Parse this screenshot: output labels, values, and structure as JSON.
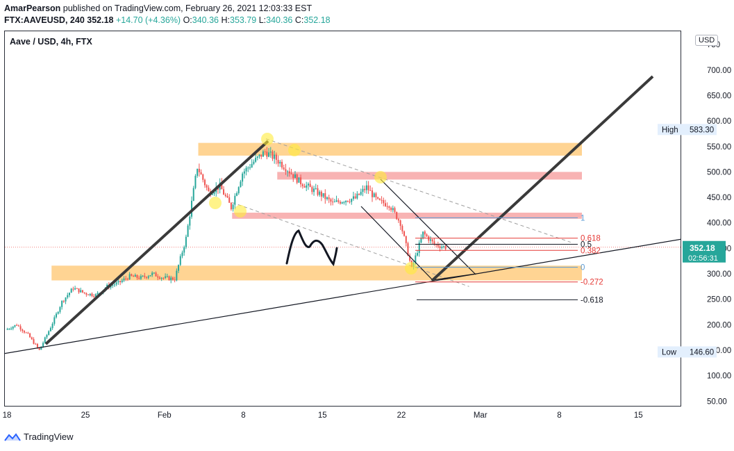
{
  "header": {
    "author": "AmarPearson",
    "published_text": "published on TradingView.com, February 26, 2021 12:03:33 EST",
    "ticker": "FTX:AAVEUSD, 240",
    "price": "352.18",
    "change": "+14.70 (+4.36%)",
    "open_label": "O:",
    "open": "340.36",
    "high_label": "H:",
    "high": "353.79",
    "low_label": "L:",
    "low": "340.36",
    "close_label": "C:",
    "close": "352.18"
  },
  "symbol_title": "Aave / USD, 4h, FTX",
  "currency_button": "USD",
  "footer_brand": "TradingView",
  "colors": {
    "up": "#26a69a",
    "down": "#ef5350",
    "orange_zone": "#ffcc80",
    "red_zone": "#f7a6a6",
    "fib_blue": "#5b9bd5",
    "fib_red": "#e53935"
  },
  "chart_data": {
    "type": "candlestick",
    "title": "Aave / USD, 4h, FTX",
    "y_axis_ticks": [
      "700.00",
      "650.00",
      "600.00",
      "550.00",
      "500.00",
      "450.00",
      "400.00",
      "350.00",
      "300.00",
      "250.00",
      "200.00",
      "150.00",
      "100.00",
      "50.00"
    ],
    "y_top_cut_label": "750",
    "ylim": [
      38,
      760
    ],
    "x_axis_ticks": [
      "18",
      "25",
      "Feb",
      "8",
      "15",
      "22",
      "Mar",
      "8",
      "15"
    ],
    "price_markers": [
      {
        "label": "High",
        "value": "583.30"
      },
      {
        "label": "Low",
        "value": "146.60"
      }
    ],
    "current_price": {
      "value": "352.18",
      "countdown": "02:56:31"
    },
    "price_path": [
      {
        "date": "Jan 18",
        "price": 190
      },
      {
        "date": "Jan 19",
        "price": 200
      },
      {
        "date": "Jan 20",
        "price": 180
      },
      {
        "date": "Jan 21",
        "price": 150
      },
      {
        "date": "Jan 22",
        "price": 195
      },
      {
        "date": "Jan 23",
        "price": 245
      },
      {
        "date": "Jan 24",
        "price": 272
      },
      {
        "date": "Jan 25",
        "price": 262
      },
      {
        "date": "Jan 26",
        "price": 258
      },
      {
        "date": "Jan 27",
        "price": 275
      },
      {
        "date": "Jan 28",
        "price": 282
      },
      {
        "date": "Jan 29",
        "price": 295
      },
      {
        "date": "Jan 30",
        "price": 292
      },
      {
        "date": "Jan 31",
        "price": 300
      },
      {
        "date": "Feb 01",
        "price": 292
      },
      {
        "date": "Feb 02",
        "price": 290
      },
      {
        "date": "Feb 03",
        "price": 370
      },
      {
        "date": "Feb 04",
        "price": 510
      },
      {
        "date": "Feb 05",
        "price": 460
      },
      {
        "date": "Feb 06",
        "price": 472
      },
      {
        "date": "Feb 07",
        "price": 430
      },
      {
        "date": "Feb 08",
        "price": 498
      },
      {
        "date": "Feb 09",
        "price": 520
      },
      {
        "date": "Feb 10",
        "price": 540
      },
      {
        "date": "Feb 11",
        "price": 525
      },
      {
        "date": "Feb 12",
        "price": 505
      },
      {
        "date": "Feb 13",
        "price": 482
      },
      {
        "date": "Feb 14",
        "price": 468
      },
      {
        "date": "Feb 15",
        "price": 455
      },
      {
        "date": "Feb 16",
        "price": 438
      },
      {
        "date": "Feb 17",
        "price": 445
      },
      {
        "date": "Feb 18",
        "price": 448
      },
      {
        "date": "Feb 19",
        "price": 470
      },
      {
        "date": "Feb 20",
        "price": 442
      },
      {
        "date": "Feb 21",
        "price": 436
      },
      {
        "date": "Feb 22",
        "price": 400
      },
      {
        "date": "Feb 23",
        "price": 310
      },
      {
        "date": "Feb 24",
        "price": 380
      },
      {
        "date": "Feb 25",
        "price": 358
      },
      {
        "date": "Feb 26",
        "price": 352
      }
    ],
    "zones": [
      {
        "name": "resistance-zone-upper",
        "color": "orange",
        "from_date": "Feb 04",
        "to_date": "Mar 10",
        "low": 532,
        "high": 557
      },
      {
        "name": "resistance-zone-500",
        "color": "red",
        "from_date": "Feb 11",
        "to_date": "Mar 10",
        "low": 485,
        "high": 500
      },
      {
        "name": "resistance-zone-410",
        "color": "red",
        "from_date": "Feb 07",
        "to_date": "Mar 10",
        "low": 408,
        "high": 420
      },
      {
        "name": "support-zone-300",
        "color": "orange",
        "from_date": "Jan 22",
        "to_date": "Mar 10",
        "low": 287,
        "high": 316
      }
    ],
    "fib_levels": [
      {
        "label": "1",
        "value": 410,
        "color": "blue"
      },
      {
        "label": "0.618",
        "value": 370,
        "color": "red"
      },
      {
        "label": "0.5",
        "value": 358,
        "color": "black"
      },
      {
        "label": "0.382",
        "value": 346,
        "color": "red"
      },
      {
        "label": "0",
        "value": 313,
        "color": "blue"
      },
      {
        "label": "-0.272",
        "value": 284,
        "color": "red"
      },
      {
        "label": "-0.618",
        "value": 249,
        "color": "black"
      }
    ],
    "annotations": "Trendlines drawn by the author: rising channel line from Jan 21 to Feb 10, long support trendline from the left edge to the right edge, falling wedge channel Feb 19 to Feb 27, breakout arrow toward 700, highlighted touch points and an M-pattern sketch."
  }
}
